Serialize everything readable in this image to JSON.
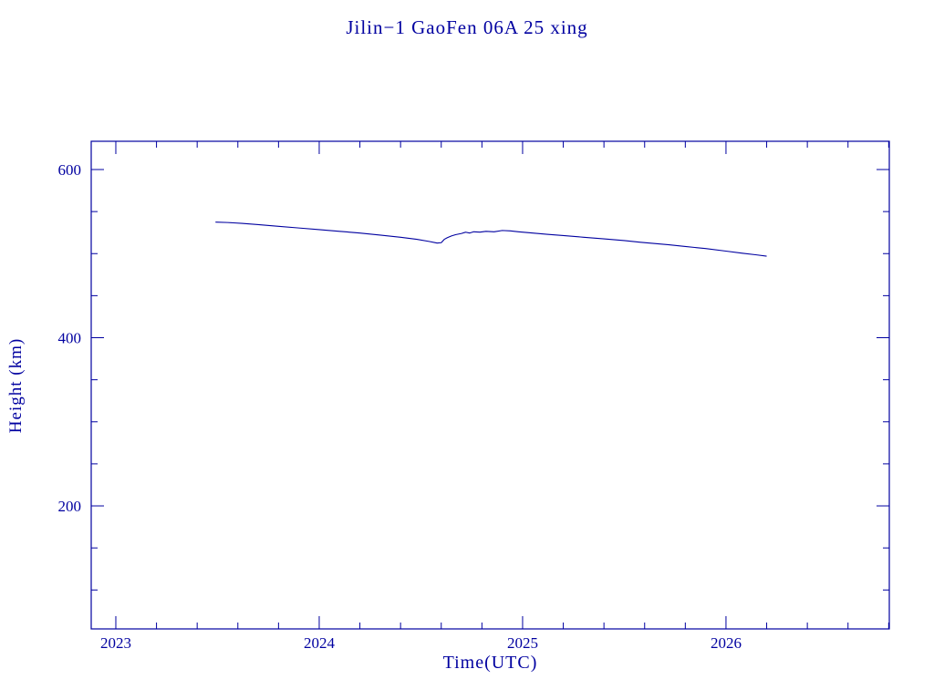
{
  "colors": {
    "accent": "#0000A0",
    "background": "#ffffff"
  },
  "chart_data": {
    "type": "line",
    "title": "Jilin−1 GaoFen 06A 25 xing",
    "xlabel": "Time(UTC)",
    "ylabel": "Height (km)",
    "xlim": [
      2022.879,
      2026.803
    ],
    "ylim": [
      53.7,
      633.6
    ],
    "x_ticks": [
      2023,
      2024,
      2025,
      2026
    ],
    "y_ticks": [
      200,
      400,
      600
    ],
    "x_minor_step": 0.2,
    "y_minor_step": 50,
    "grid": false,
    "legend": "none",
    "series": [
      {
        "name": "height",
        "color": "#0000A0",
        "points": [
          [
            2023.49,
            537.5
          ],
          [
            2023.55,
            537.0
          ],
          [
            2023.62,
            536.0
          ],
          [
            2023.7,
            534.5
          ],
          [
            2023.8,
            532.5
          ],
          [
            2023.9,
            530.5
          ],
          [
            2024.0,
            528.5
          ],
          [
            2024.1,
            526.5
          ],
          [
            2024.2,
            524.5
          ],
          [
            2024.3,
            522.0
          ],
          [
            2024.4,
            519.5
          ],
          [
            2024.48,
            517.0
          ],
          [
            2024.54,
            514.5
          ],
          [
            2024.58,
            512.5
          ],
          [
            2024.6,
            513.0
          ],
          [
            2024.615,
            517.0
          ],
          [
            2024.63,
            519.0
          ],
          [
            2024.65,
            521.0
          ],
          [
            2024.67,
            522.5
          ],
          [
            2024.7,
            524.0
          ],
          [
            2024.72,
            525.5
          ],
          [
            2024.74,
            524.5
          ],
          [
            2024.76,
            526.0
          ],
          [
            2024.79,
            525.5
          ],
          [
            2024.82,
            526.5
          ],
          [
            2024.86,
            526.0
          ],
          [
            2024.9,
            527.5
          ],
          [
            2024.94,
            527.0
          ],
          [
            2024.98,
            526.0
          ],
          [
            2025.05,
            524.5
          ],
          [
            2025.12,
            523.0
          ],
          [
            2025.2,
            521.5
          ],
          [
            2025.3,
            519.5
          ],
          [
            2025.4,
            517.5
          ],
          [
            2025.5,
            515.5
          ],
          [
            2025.58,
            513.5
          ],
          [
            2025.65,
            512.0
          ],
          [
            2025.72,
            510.5
          ],
          [
            2025.8,
            508.5
          ],
          [
            2025.9,
            506.0
          ],
          [
            2026.0,
            503.0
          ],
          [
            2026.08,
            500.5
          ],
          [
            2026.15,
            498.5
          ],
          [
            2026.2,
            497.0
          ]
        ]
      }
    ]
  }
}
